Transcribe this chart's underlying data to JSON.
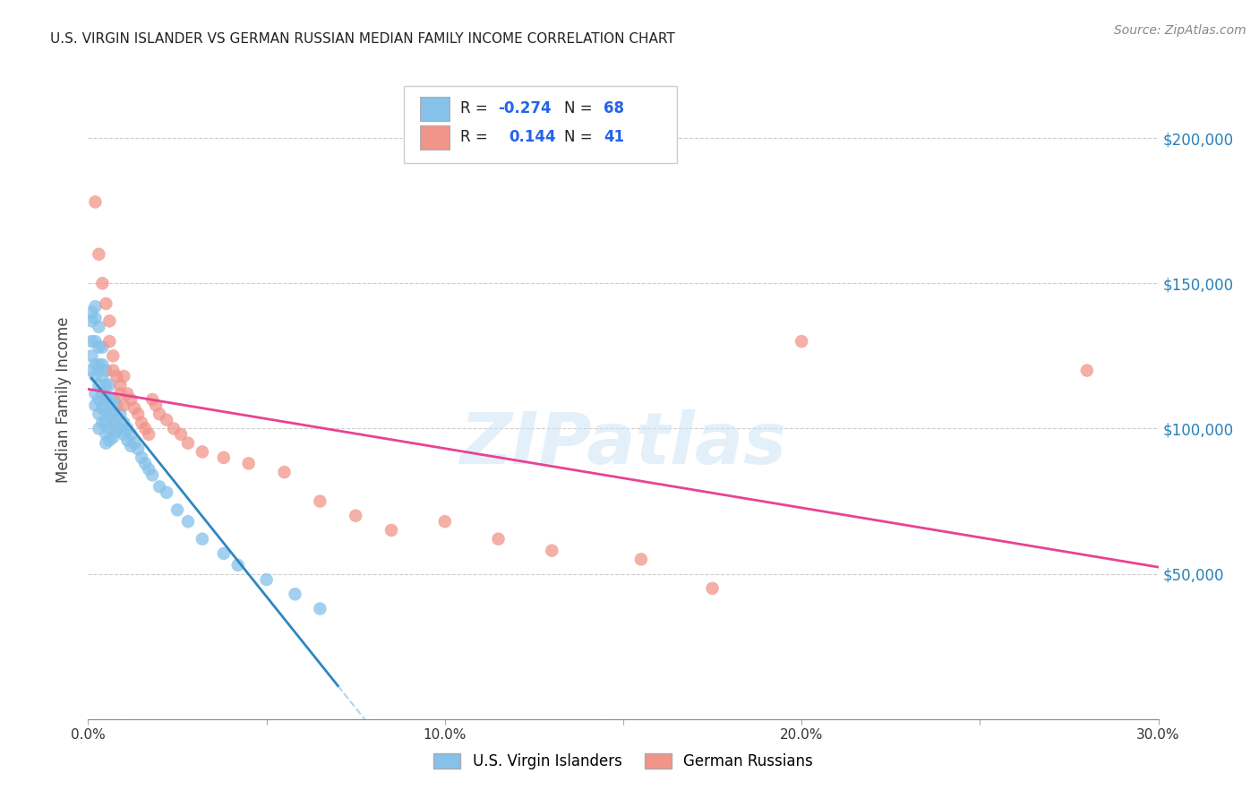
{
  "title": "U.S. VIRGIN ISLANDER VS GERMAN RUSSIAN MEDIAN FAMILY INCOME CORRELATION CHART",
  "source": "Source: ZipAtlas.com",
  "ylabel": "Median Family Income",
  "xlim": [
    0.0,
    0.3
  ],
  "ylim": [
    0,
    220000
  ],
  "ytick_positions": [
    0,
    50000,
    100000,
    150000,
    200000
  ],
  "ytick_labels": [
    "",
    "$50,000",
    "$100,000",
    "$150,000",
    "$200,000"
  ],
  "watermark": "ZIPatlas",
  "legend1_r": "-0.274",
  "legend1_n": "68",
  "legend2_r": "0.144",
  "legend2_n": "41",
  "blue_color": "#85c1e9",
  "pink_color": "#f1948a",
  "blue_line_color": "#2e86c1",
  "pink_line_color": "#e84393",
  "blue_dash_color": "#aed6f1",
  "grid_color": "#cccccc",
  "blue_scatter_x": [
    0.001,
    0.001,
    0.001,
    0.001,
    0.001,
    0.002,
    0.002,
    0.002,
    0.002,
    0.002,
    0.002,
    0.002,
    0.003,
    0.003,
    0.003,
    0.003,
    0.003,
    0.003,
    0.003,
    0.004,
    0.004,
    0.004,
    0.004,
    0.004,
    0.004,
    0.005,
    0.005,
    0.005,
    0.005,
    0.005,
    0.005,
    0.005,
    0.006,
    0.006,
    0.006,
    0.006,
    0.006,
    0.007,
    0.007,
    0.007,
    0.007,
    0.008,
    0.008,
    0.008,
    0.009,
    0.009,
    0.01,
    0.01,
    0.011,
    0.011,
    0.012,
    0.012,
    0.013,
    0.014,
    0.015,
    0.016,
    0.017,
    0.018,
    0.02,
    0.022,
    0.025,
    0.028,
    0.032,
    0.038,
    0.042,
    0.05,
    0.058,
    0.065
  ],
  "blue_scatter_y": [
    140000,
    137000,
    130000,
    125000,
    120000,
    142000,
    138000,
    130000,
    122000,
    118000,
    112000,
    108000,
    135000,
    128000,
    122000,
    115000,
    110000,
    105000,
    100000,
    128000,
    122000,
    118000,
    112000,
    107000,
    102000,
    120000,
    115000,
    110000,
    106000,
    102000,
    98000,
    95000,
    115000,
    110000,
    105000,
    100000,
    96000,
    110000,
    106000,
    102000,
    97000,
    108000,
    103000,
    99000,
    105000,
    100000,
    102000,
    98000,
    100000,
    96000,
    98000,
    94000,
    95000,
    93000,
    90000,
    88000,
    86000,
    84000,
    80000,
    78000,
    72000,
    68000,
    62000,
    57000,
    53000,
    48000,
    43000,
    38000
  ],
  "pink_scatter_x": [
    0.002,
    0.003,
    0.004,
    0.005,
    0.006,
    0.006,
    0.007,
    0.007,
    0.008,
    0.009,
    0.009,
    0.01,
    0.01,
    0.011,
    0.012,
    0.013,
    0.014,
    0.015,
    0.016,
    0.017,
    0.018,
    0.019,
    0.02,
    0.022,
    0.024,
    0.026,
    0.028,
    0.032,
    0.038,
    0.045,
    0.055,
    0.065,
    0.075,
    0.085,
    0.1,
    0.115,
    0.13,
    0.155,
    0.175,
    0.2,
    0.28
  ],
  "pink_scatter_y": [
    178000,
    160000,
    150000,
    143000,
    137000,
    130000,
    125000,
    120000,
    118000,
    115000,
    112000,
    108000,
    118000,
    112000,
    110000,
    107000,
    105000,
    102000,
    100000,
    98000,
    110000,
    108000,
    105000,
    103000,
    100000,
    98000,
    95000,
    92000,
    90000,
    88000,
    85000,
    75000,
    70000,
    65000,
    68000,
    62000,
    58000,
    55000,
    45000,
    130000,
    120000
  ]
}
